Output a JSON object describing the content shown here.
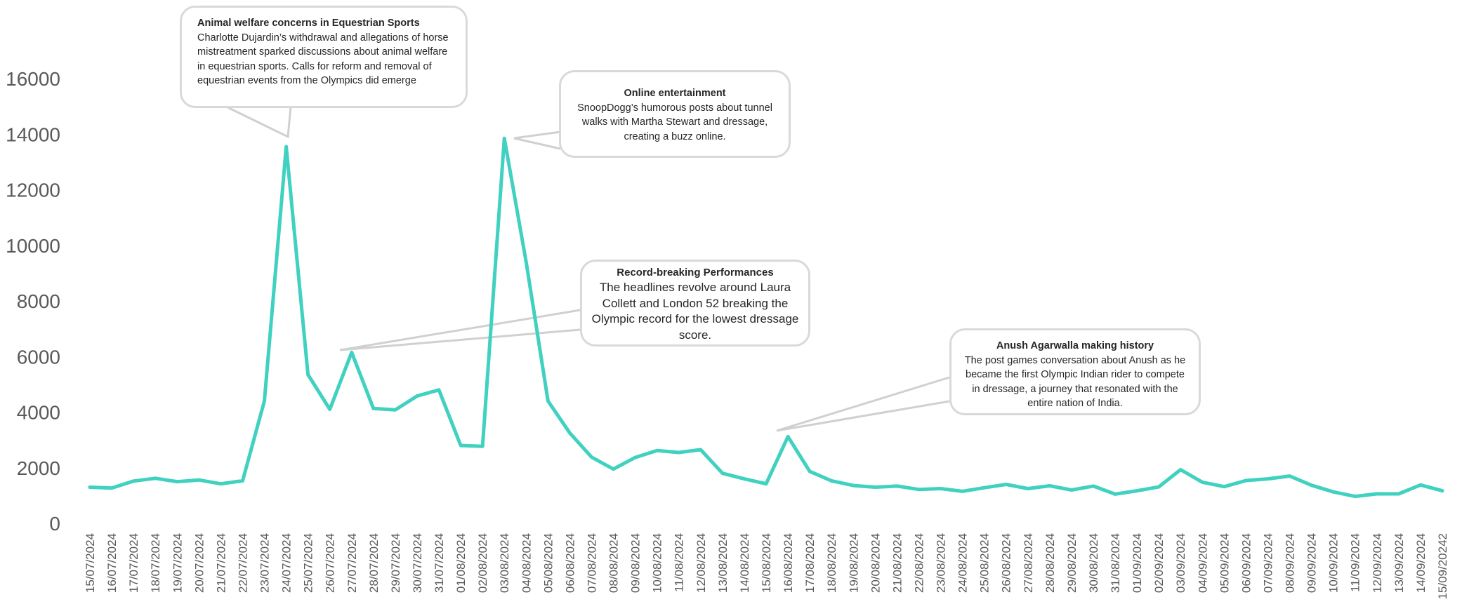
{
  "chart_data": {
    "type": "line",
    "title": "",
    "xlabel": "",
    "ylabel": "",
    "ylim": [
      0,
      16000
    ],
    "yticks": [
      0,
      2000,
      4000,
      6000,
      8000,
      10000,
      12000,
      14000,
      16000
    ],
    "grid": false,
    "legend": "none",
    "line_color": "#40d1c0",
    "x": [
      "15/07/2024",
      "16/07/2024",
      "17/07/2024",
      "18/07/2024",
      "19/07/2024",
      "20/07/2024",
      "21/07/2024",
      "22/07/2024",
      "23/07/2024",
      "24/07/2024",
      "25/07/2024",
      "26/07/2024",
      "27/07/2024",
      "28/07/2024",
      "29/07/2024",
      "30/07/2024",
      "31/07/2024",
      "01/08/2024",
      "02/08/2024",
      "03/08/2024",
      "04/08/2024",
      "05/08/2024",
      "06/08/2024",
      "07/08/2024",
      "08/08/2024",
      "09/08/2024",
      "10/08/2024",
      "11/08/2024",
      "12/08/2024",
      "13/08/2024",
      "14/08/2024",
      "15/08/2024",
      "16/08/2024",
      "17/08/2024",
      "18/08/2024",
      "19/08/2024",
      "20/08/2024",
      "21/08/2024",
      "22/08/2024",
      "23/08/2024",
      "24/08/2024",
      "25/08/2024",
      "26/08/2024",
      "27/08/2024",
      "28/08/2024",
      "29/08/2024",
      "30/08/2024",
      "31/08/2024",
      "01/09/2024",
      "02/09/2024",
      "03/09/2024",
      "04/09/2024",
      "05/09/2024",
      "06/09/2024",
      "07/09/2024",
      "08/09/2024",
      "09/09/2024",
      "10/09/2024",
      "11/09/2024",
      "12/09/2024",
      "13/09/2024",
      "14/09/2024",
      "15/09/20242"
    ],
    "values": [
      1300,
      1270,
      1520,
      1620,
      1500,
      1560,
      1420,
      1530,
      4400,
      13550,
      5350,
      4100,
      6150,
      4130,
      4080,
      4580,
      4800,
      2800,
      2770,
      13850,
      9400,
      4400,
      3250,
      2380,
      1950,
      2370,
      2620,
      2550,
      2650,
      1800,
      1600,
      1420,
      3120,
      1870,
      1530,
      1360,
      1300,
      1340,
      1220,
      1250,
      1150,
      1280,
      1400,
      1250,
      1350,
      1200,
      1340,
      1050,
      1170,
      1310,
      1930,
      1480,
      1320,
      1540,
      1600,
      1700,
      1370,
      1130,
      970,
      1060,
      1060,
      1380,
      1170
    ],
    "annotations": [
      {
        "title": "Animal welfare concerns in Equestrian Sports",
        "text": "Charlotte Dujardin’s withdrawal and allegations of horse mistreatment sparked discussions about animal welfare in equestrian sports. Calls for reform and removal of equestrian events from the Olympics did emerge",
        "x": "24/07/2024"
      },
      {
        "title": "Online entertainment",
        "text": "SnoopDogg’s humorous posts  about tunnel walks with Martha Stewart and dressage, creating a buzz online.",
        "x": "03/08/2024"
      },
      {
        "title": "Record-breaking Performances",
        "text": "The headlines revolve around Laura Collett and London 52 breaking the Olympic record for the lowest dressage score.",
        "x": "27/07/2024"
      },
      {
        "title": "Anush Agarwalla making  history",
        "text": "The post games conversation about Anush as he became the first Olympic Indian rider to compete in dressage, a journey that resonated with the entire nation of India.",
        "x": "16/08/2024"
      }
    ]
  }
}
